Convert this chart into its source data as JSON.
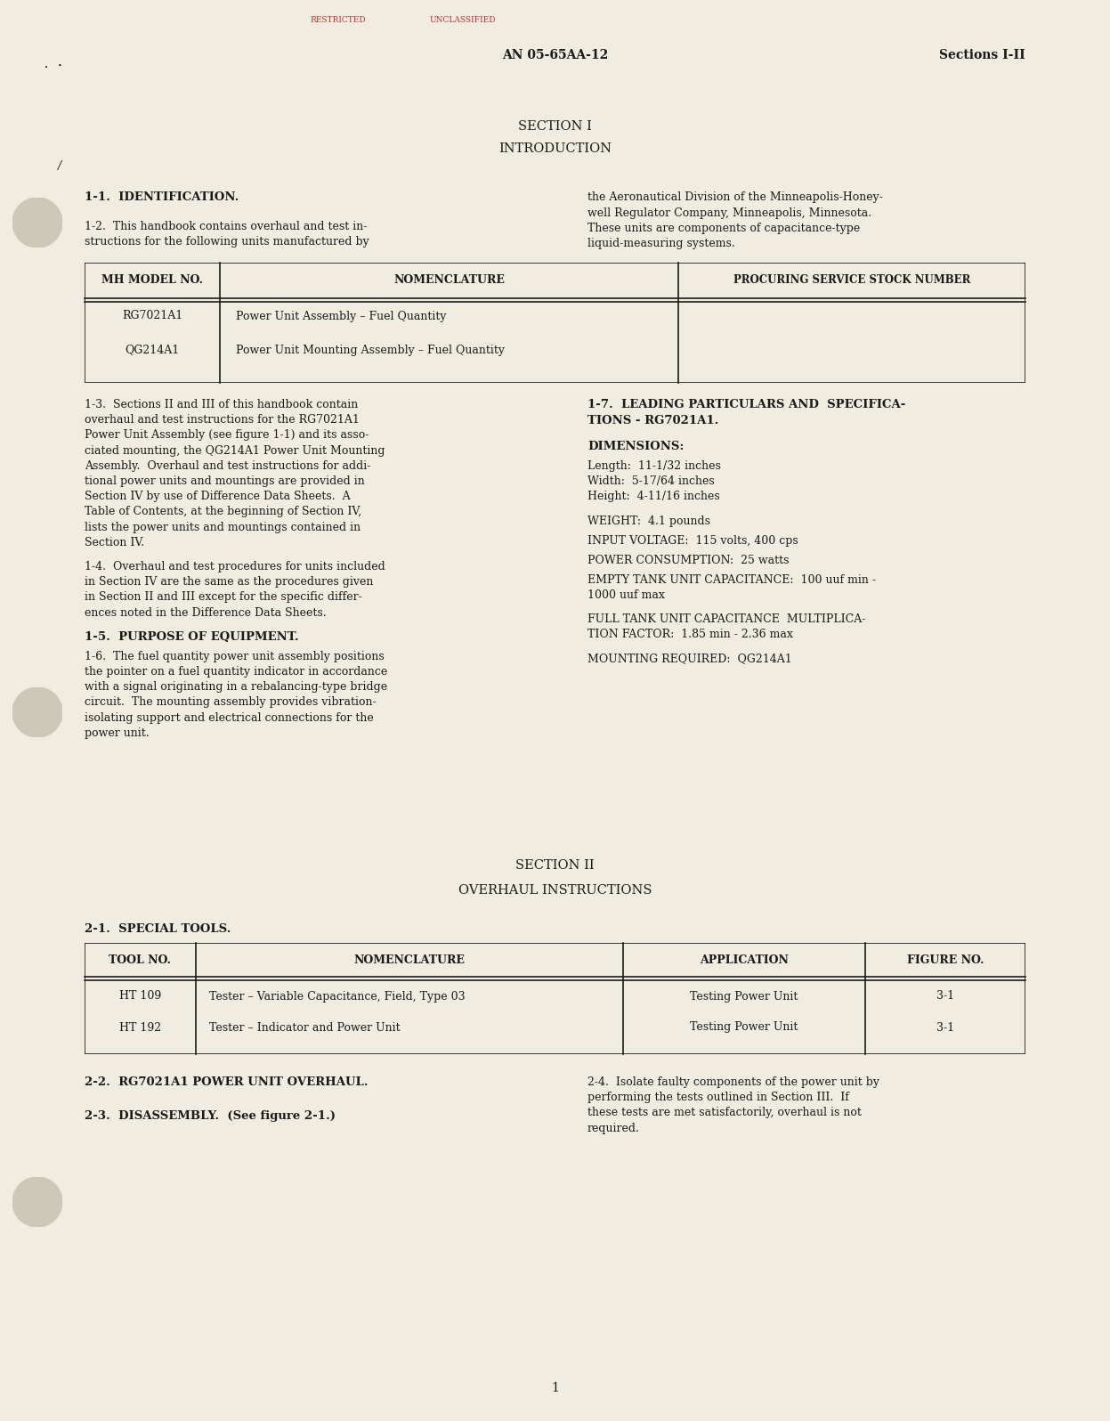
{
  "bg_color": "#f0ece0",
  "text_color": "#1a1a1a",
  "page_num": "1",
  "header_center": "AN 05-65AA-12",
  "header_right": "Sections I-II",
  "section1_title": "SECTION I",
  "section1_subtitle": "INTRODUCTION",
  "para_1_1_head": "1-1.  IDENTIFICATION.",
  "para_1_2_lines": [
    "1-2.  This handbook contains overhaul and test in-",
    "structions for the following units manufactured by"
  ],
  "right_col_1_lines": [
    "the Aeronautical Division of the Minneapolis-Honey-",
    "well Regulator Company, Minneapolis, Minnesota.",
    "These units are components of capacitance-type",
    "liquid-measuring systems."
  ],
  "table1_headers": [
    "MH MODEL NO.",
    "NOMENCLATURE",
    "PROCURING SERVICE STOCK NUMBER"
  ],
  "table1_rows": [
    [
      "RG7021A1",
      "Power Unit Assembly – Fuel Quantity",
      ""
    ],
    [
      "QG214A1",
      "Power Unit Mounting Assembly – Fuel Quantity",
      ""
    ]
  ],
  "para_1_3_lines": [
    "1-3.  Sections II and III of this handbook contain",
    "overhaul and test instructions for the RG7021A1",
    "Power Unit Assembly (see figure 1-1) and its asso-",
    "ciated mounting, the QG214A1 Power Unit Mounting",
    "Assembly.  Overhaul and test instructions for addi-",
    "tional power units and mountings are provided in",
    "Section IV by use of Difference Data Sheets.  A",
    "Table of Contents, at the beginning of Section IV,",
    "lists the power units and mountings contained in",
    "Section IV."
  ],
  "para_1_4_lines": [
    "1-4.  Overhaul and test procedures for units included",
    "in Section IV are the same as the procedures given",
    "in Section II and III except for the specific differ-",
    "ences noted in the Difference Data Sheets."
  ],
  "para_1_5_head": "1-5.  PURPOSE OF EQUIPMENT.",
  "para_1_6_lines": [
    "1-6.  The fuel quantity power unit assembly positions",
    "the pointer on a fuel quantity indicator in accordance",
    "with a signal originating in a rebalancing-type bridge",
    "circuit.  The mounting assembly provides vibration-",
    "isolating support and electrical connections for the",
    "power unit."
  ],
  "para_1_7_head_lines": [
    "1-7.  LEADING PARTICULARS AND  SPECIFICA-",
    "TIONS - RG7021A1."
  ],
  "dimensions_head": "DIMENSIONS:",
  "dimensions_lines": [
    "Length:  11-1/32 inches",
    "Width:  5-17/64 inches",
    "Height:  4-11/16 inches"
  ],
  "weight_line": "WEIGHT:  4.1 pounds",
  "input_voltage_line": "INPUT VOLTAGE:  115 volts, 400 cps",
  "power_consumption_line": "POWER CONSUMPTION:  25 watts",
  "empty_tank_lines": [
    "EMPTY TANK UNIT CAPACITANCE:  100 uuf min -",
    "1000 uuf max"
  ],
  "full_tank_lines": [
    "FULL TANK UNIT CAPACITANCE  MULTIPLICA-",
    "TION FACTOR:  1.85 min - 2.36 max"
  ],
  "mounting_req_line": "MOUNTING REQUIRED:  QG214A1",
  "section2_title": "SECTION II",
  "section2_subtitle": "OVERHAUL INSTRUCTIONS",
  "para_2_1_head": "2-1.  SPECIAL TOOLS.",
  "table2_headers": [
    "TOOL NO.",
    "NOMENCLATURE",
    "APPLICATION",
    "FIGURE NO."
  ],
  "table2_rows": [
    [
      "HT 109",
      "Tester – Variable Capacitance, Field, Type 03",
      "Testing Power Unit",
      "3-1"
    ],
    [
      "HT 192",
      "Tester – Indicator and Power Unit",
      "Testing Power Unit",
      "3-1"
    ]
  ],
  "para_2_2_head": "2-2.  RG7021A1 POWER UNIT OVERHAUL.",
  "para_2_3_head": "2-3.  DISASSEMBLY.  (See figure 2-1.)",
  "para_2_4_lines": [
    "2-4.  Isolate faulty components of the power unit by",
    "performing the tests outlined in Section III.  If",
    "these tests are met satisfactorily, overhaul is not",
    "required."
  ]
}
